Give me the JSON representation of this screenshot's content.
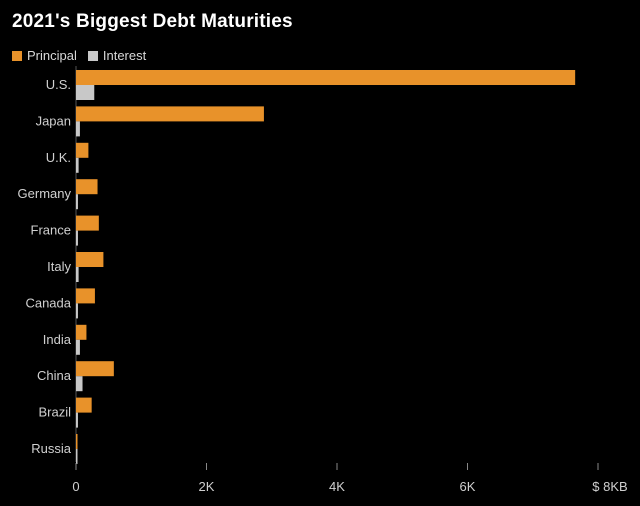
{
  "chart_data": {
    "type": "bar",
    "orientation": "horizontal",
    "title": "2021's Biggest Debt Maturities",
    "categories": [
      "U.S.",
      "Japan",
      "U.K.",
      "Germany",
      "France",
      "Italy",
      "Canada",
      "India",
      "China",
      "Brazil",
      "Russia"
    ],
    "series": [
      {
        "name": "Principal",
        "color": "#e8922a",
        "values": [
          7650,
          2880,
          190,
          330,
          350,
          420,
          290,
          160,
          580,
          240,
          20
        ]
      },
      {
        "name": "Interest",
        "color": "#c8c8c8",
        "values": [
          280,
          60,
          40,
          30,
          30,
          40,
          30,
          60,
          100,
          30,
          5
        ]
      }
    ],
    "xticks": [
      0,
      2000,
      4000,
      6000,
      8000
    ],
    "xtick_labels": [
      "0",
      "2K",
      "4K",
      "6K",
      "$ 8KB"
    ],
    "xlim": [
      0,
      8000
    ],
    "xlabel": "",
    "ylabel": "",
    "grid": false,
    "legend_position": "top-left"
  }
}
